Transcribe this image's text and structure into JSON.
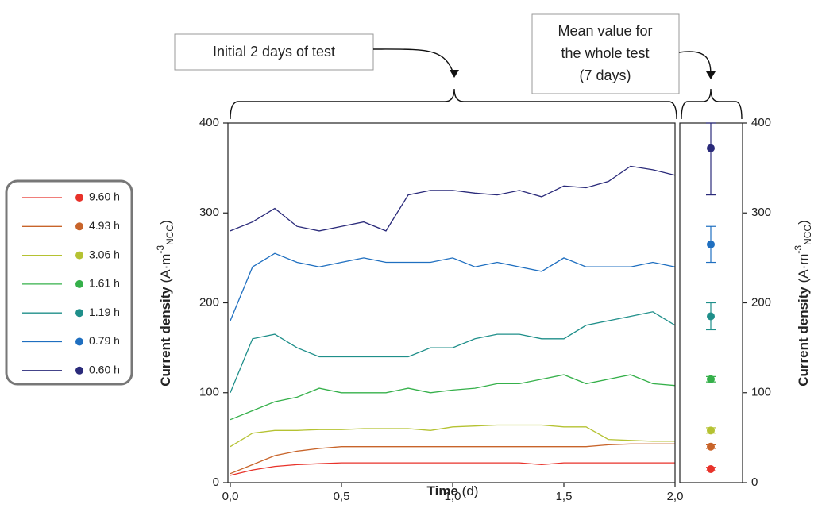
{
  "chart_data": {
    "type": "line",
    "annotations": {
      "left": "Initial 2 days of test",
      "right": [
        "Mean value for",
        "the whole test",
        "(7 days)"
      ]
    },
    "y_label": {
      "main": "Current density",
      "unit": "(A·m",
      "sup": "-3",
      "sub": "NCC",
      "close": ")"
    },
    "x_label": {
      "main": "Time",
      "unit": "(d)"
    },
    "xlim": [
      0,
      2
    ],
    "xticks": [
      {
        "value": 0,
        "label": "0,0"
      },
      {
        "value": 0.5,
        "label": "0,5"
      },
      {
        "value": 1,
        "label": "1,0"
      },
      {
        "value": 1.5,
        "label": "1,5"
      },
      {
        "value": 2,
        "label": "2,0"
      }
    ],
    "ylim": [
      0,
      400
    ],
    "yticks": [
      0,
      100,
      200,
      300,
      400
    ],
    "y2lim": [
      0,
      400
    ],
    "y2ticks": [
      0,
      100,
      200,
      300,
      400
    ],
    "x": [
      0,
      0.1,
      0.2,
      0.3,
      0.4,
      0.5,
      0.6,
      0.7,
      0.8,
      0.9,
      1,
      1.1,
      1.2,
      1.3,
      1.4,
      1.5,
      1.6,
      1.7,
      1.8,
      1.9,
      2
    ],
    "series": [
      {
        "name": "9.60 h",
        "color": "#e8322a",
        "values": [
          8,
          14,
          18,
          20,
          21,
          22,
          22,
          22,
          22,
          22,
          22,
          22,
          22,
          22,
          20,
          22,
          22,
          22,
          22,
          22,
          22
        ],
        "mean": 15,
        "mean_error": 2
      },
      {
        "name": "4.93 h",
        "color": "#c8642a",
        "values": [
          10,
          20,
          30,
          35,
          38,
          40,
          40,
          40,
          40,
          40,
          40,
          40,
          40,
          40,
          40,
          40,
          40,
          42,
          43,
          43,
          43
        ],
        "mean": 40,
        "mean_error": 2
      },
      {
        "name": "3.06 h",
        "color": "#b5c232",
        "values": [
          40,
          55,
          58,
          58,
          59,
          59,
          60,
          60,
          60,
          58,
          62,
          63,
          64,
          64,
          64,
          62,
          62,
          48,
          47,
          46,
          46
        ],
        "mean": 58,
        "mean_error": 3
      },
      {
        "name": "1.61 h",
        "color": "#35b04a",
        "values": [
          70,
          80,
          90,
          95,
          105,
          100,
          100,
          100,
          105,
          100,
          103,
          105,
          110,
          110,
          115,
          120,
          110,
          115,
          120,
          110,
          108
        ],
        "mean": 115,
        "mean_error": 3
      },
      {
        "name": "1.19 h",
        "color": "#1f8f8a",
        "values": [
          100,
          160,
          165,
          150,
          140,
          140,
          140,
          140,
          140,
          150,
          150,
          160,
          165,
          165,
          160,
          160,
          175,
          180,
          185,
          190,
          175
        ],
        "mean": 185,
        "mean_error": 15
      },
      {
        "name": "0.79 h",
        "color": "#1f6fc0",
        "values": [
          180,
          240,
          255,
          245,
          240,
          245,
          250,
          245,
          245,
          245,
          250,
          240,
          245,
          240,
          235,
          250,
          240,
          240,
          240,
          245,
          240
        ],
        "mean": 265,
        "mean_error": 20
      },
      {
        "name": "0.60 h",
        "color": "#2a2a7a",
        "values": [
          280,
          290,
          305,
          285,
          280,
          285,
          290,
          280,
          320,
          325,
          325,
          322,
          320,
          325,
          318,
          330,
          328,
          335,
          352,
          348,
          342
        ],
        "mean": 372,
        "mean_error": 52
      }
    ]
  }
}
